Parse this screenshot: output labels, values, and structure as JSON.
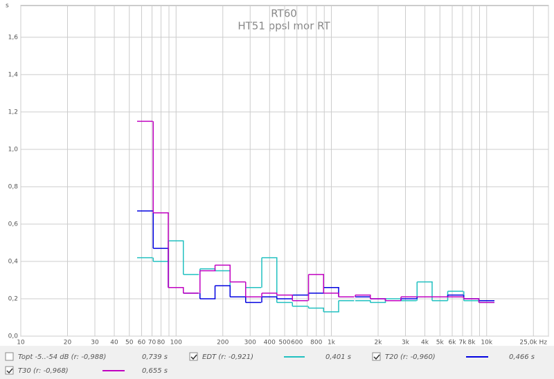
{
  "chart_data": {
    "type": "step",
    "title": "RT60",
    "subtitle": "HT51 ppsl mor RT",
    "y_unit": "s",
    "log_x": true,
    "grid": true,
    "x": [
      63,
      80,
      100,
      125,
      160,
      200,
      250,
      315,
      400,
      500,
      630,
      800,
      1000,
      1250,
      1600,
      2000,
      2500,
      3150,
      4000,
      5000,
      6300,
      8000,
      10000
    ],
    "series": [
      {
        "name": "Topt -5..-54 dB (r: -0,988)",
        "reading": "0,739 s",
        "color": "#1a9a1a",
        "checked": false
      },
      {
        "name": "EDT (r: -0,921)",
        "reading": "0,401 s",
        "color": "#20c0c0",
        "checked": true,
        "values": [
          0.42,
          0.4,
          0.51,
          0.33,
          0.36,
          0.35,
          0.21,
          0.26,
          0.42,
          0.18,
          0.16,
          0.15,
          0.13,
          0.19,
          0.19,
          0.18,
          0.2,
          0.19,
          0.29,
          0.19,
          0.24,
          0.19,
          0.18
        ]
      },
      {
        "name": "T20 (r: -0,960)",
        "reading": "0,466 s",
        "color": "#0000e0",
        "checked": true,
        "values": [
          0.67,
          0.47,
          0.26,
          0.23,
          0.2,
          0.27,
          0.21,
          0.18,
          0.21,
          0.2,
          0.22,
          0.23,
          0.26,
          0.21,
          0.21,
          0.2,
          0.19,
          0.2,
          0.21,
          0.21,
          0.22,
          0.2,
          0.19
        ]
      },
      {
        "name": "T30 (r: -0,968)",
        "reading": "0,655 s",
        "color": "#c000c0",
        "checked": true,
        "values": [
          1.15,
          0.66,
          0.26,
          0.23,
          0.35,
          0.38,
          0.29,
          0.21,
          0.23,
          0.22,
          0.19,
          0.33,
          0.23,
          0.21,
          0.22,
          0.2,
          0.19,
          0.21,
          0.21,
          0.21,
          0.21,
          0.2,
          0.18
        ]
      }
    ],
    "xlim": [
      10,
      25000
    ],
    "xticks": [
      10,
      20,
      30,
      40,
      50,
      60,
      70,
      80,
      100,
      200,
      300,
      400,
      500,
      600,
      800,
      {
        "value": 1000,
        "label": "1k"
      },
      {
        "value": 2000,
        "label": "2k"
      },
      {
        "value": 3000,
        "label": "3k"
      },
      {
        "value": 4000,
        "label": "4k"
      },
      {
        "value": 5000,
        "label": "5k"
      },
      {
        "value": 6000,
        "label": "6k"
      },
      {
        "value": 7000,
        "label": "7k"
      },
      {
        "value": 8000,
        "label": "8k"
      },
      {
        "value": 10000,
        "label": "10k"
      },
      {
        "value": 25000,
        "label": "25,0k Hz"
      }
    ],
    "xminor": [
      90,
      700,
      900,
      9000,
      20000
    ],
    "ylim": [
      0,
      1.77
    ],
    "yticks": [
      {
        "value": 0,
        "label": "0,0"
      },
      {
        "value": 0.2,
        "label": "0,2"
      },
      {
        "value": 0.4,
        "label": "0,4"
      },
      {
        "value": 0.6,
        "label": "0,6"
      },
      {
        "value": 0.8,
        "label": "0,8"
      },
      {
        "value": 1.0,
        "label": "1,0"
      },
      {
        "value": 1.2,
        "label": "1,2"
      },
      {
        "value": 1.4,
        "label": "1,4"
      },
      {
        "value": 1.6,
        "label": "1,6"
      }
    ]
  }
}
